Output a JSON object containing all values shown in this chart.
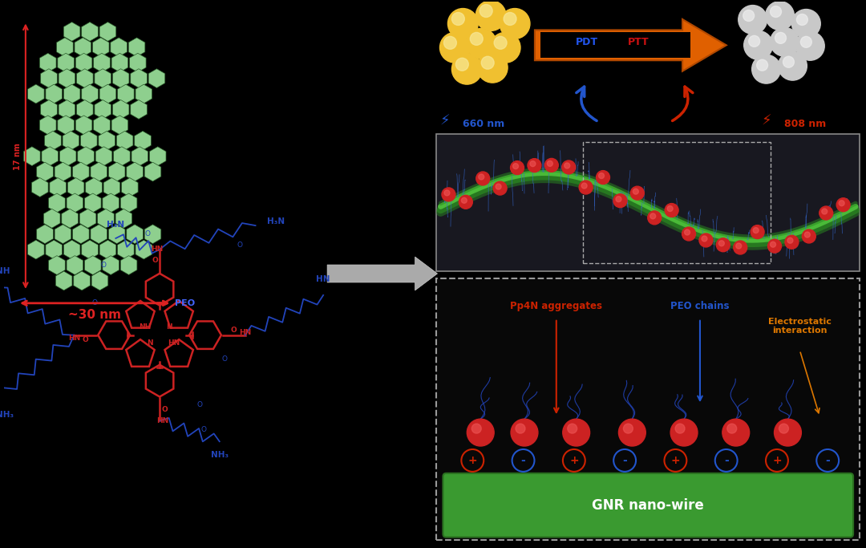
{
  "bg_color": "#000000",
  "hex_fill": "#8ecf8e",
  "hex_edge": "#2a5a2a",
  "dim_color": "#dd2222",
  "dim_text": "~30 nm",
  "dim_text2": "17 nm",
  "peo_label": "PEO",
  "pdt_label": "PDT",
  "ptt_label": "PTT",
  "nm660_label": "660 nm",
  "nm808_label": "808 nm",
  "pp4n_label": "Pp4N aggregates",
  "peo_chain_label": "PEO chains",
  "electro_label": "Electrostatic\ninteraction",
  "gnr_wire_label": "GNR nano-wire",
  "yellow_ball_color": "#f0c030",
  "gray_ball_color": "#c8c8c8",
  "orange_arrow_color": "#e06000",
  "blue_color": "#2255cc",
  "red_color": "#cc2200",
  "green_wire_color": "#3a9a30",
  "green_wire_light": "#60cc40",
  "porphyrin_color": "#cc2222",
  "peo_chain_color": "#2244bb"
}
